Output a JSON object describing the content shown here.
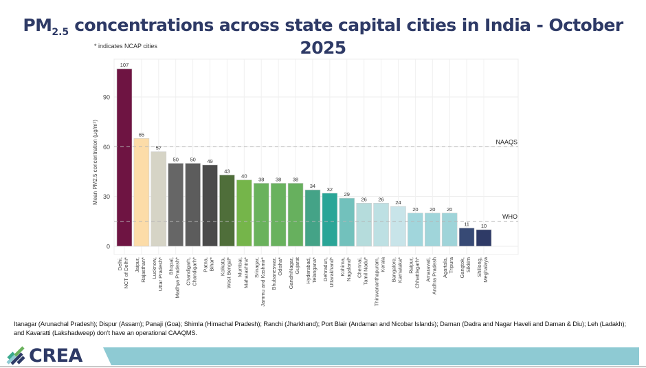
{
  "title": {
    "prefix": "PM",
    "subscript": "2.5",
    "rest": " concentrations across state capital cities in India - October 2025"
  },
  "subnote": "* indicates NCAP cities",
  "chart_data": {
    "type": "bar",
    "title": "PM2.5 concentrations across state capital cities in India - October 2025",
    "xlabel": "",
    "ylabel": "Mean PM2.5 concentration (µg/m³)",
    "ylim": [
      0,
      110
    ],
    "yticks": [
      0,
      30,
      60,
      90
    ],
    "grid": true,
    "categories": [
      [
        "Delhi,",
        "NCT of Delhi*"
      ],
      [
        "Jaipur,",
        "Rajasthan*"
      ],
      [
        "Lucknow,",
        "Uttar Pradesh*"
      ],
      [
        "Bhopal,",
        "Madhya Pradesh*"
      ],
      [
        "Chandigarh,",
        "Chandigarh*"
      ],
      [
        "Patna,",
        "Bihar*"
      ],
      [
        "Kolkata,",
        "West Bengal*"
      ],
      [
        "Mumbai,",
        "Maharashtra*"
      ],
      [
        "Srinagar,",
        "Jammu and Kashmir*"
      ],
      [
        "Bhubaneswar,",
        "Odisha*"
      ],
      [
        "GandhiNagar,",
        "Gujarat"
      ],
      [
        "Hyderabad,",
        "Telangana*"
      ],
      [
        "Dehradun,",
        "Uttarakhand*"
      ],
      [
        "Kohima,",
        "Nagaland*"
      ],
      [
        "Chennai,",
        "Tamil Nadu*"
      ],
      [
        "Thiruvananthapuram,",
        "Kerala"
      ],
      [
        "Bangalore,",
        "Karnataka*"
      ],
      [
        "Raipur,",
        "Chhattisgarh*"
      ],
      [
        "Amaravati,",
        "Andhra Pradesh"
      ],
      [
        "Agartala,",
        "Tripura"
      ],
      [
        "Gangtok,",
        "Sikkim"
      ],
      [
        "Shillong,",
        "Meghalaya"
      ]
    ],
    "values": [
      107,
      65,
      57,
      50,
      50,
      49,
      43,
      40,
      38,
      38,
      38,
      34,
      32,
      29,
      26,
      26,
      24,
      20,
      20,
      20,
      11,
      10
    ],
    "bar_colors": [
      "#6e1442",
      "#fcdca8",
      "#d6d4c6",
      "#666666",
      "#5c5c5c",
      "#4a4a4a",
      "#4f6e3a",
      "#75b54a",
      "#6ab25c",
      "#69b25e",
      "#67b05e",
      "#44a387",
      "#2aa597",
      "#72c1bc",
      "#b5dcdc",
      "#bde0e3",
      "#c8e4e9",
      "#a1d6dc",
      "#a0d5da",
      "#9fd4d9",
      "#374a75",
      "#2e3a66"
    ],
    "reference_lines": [
      {
        "label": "NAAQS",
        "value": 60
      },
      {
        "label": "WHO",
        "value": 15
      }
    ]
  },
  "footnote": "Itanagar (Arunachal Pradesh); Dispur (Assam); Panaji (Goa); Shimla (Himachal Pradesh); Ranchi (Jharkhand); Port Blair (Andaman and Nicobar Islands); Daman (Dadra and Nagar Haveli and Daman & Diu); Leh (Ladakh); and Kavaratti (Lakshadweep) don't have an operational CAAQMS.",
  "logo": {
    "text": "CREA",
    "colors": [
      "#2e3a66",
      "#3aaa8e",
      "#8ecad3",
      "#6ab25c"
    ]
  }
}
